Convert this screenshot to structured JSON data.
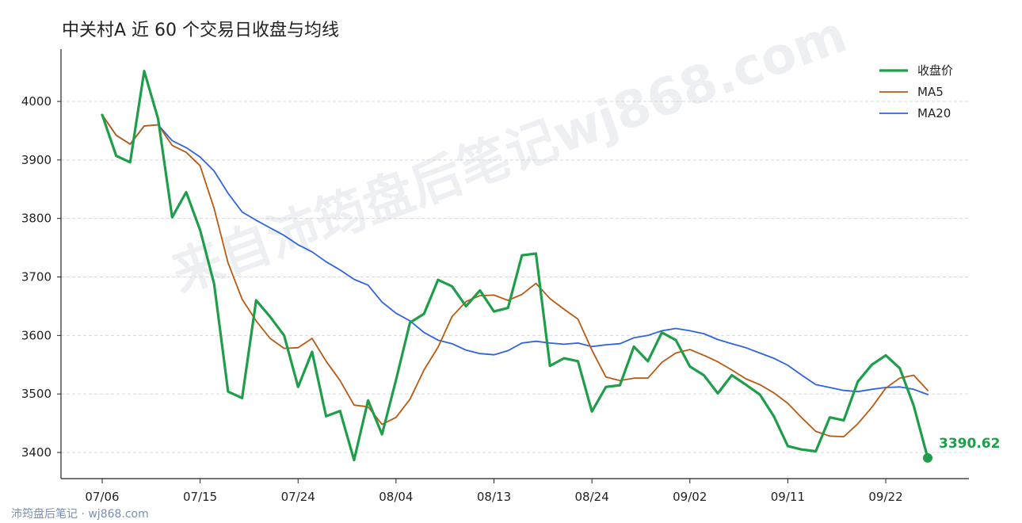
{
  "title": "中关村A 近 60 个交易日收盘与均线",
  "watermark": "来自沛筠盘后笔记wj868.com",
  "footer": "沛筠盘后笔记 · wj868.com",
  "colors": {
    "close": "#1e9e4a",
    "ma5": "#b85a12",
    "ma20": "#2f64e0",
    "grid": "#d8d8d8",
    "axis": "#222222"
  },
  "chart_data": {
    "type": "line",
    "title": "中关村A 近 60 个交易日收盘与均线",
    "xlabel": "",
    "ylabel": "",
    "ylim": [
      3365,
      4085
    ],
    "yticks": [
      3400,
      3500,
      3600,
      3700,
      3800,
      3900,
      4000
    ],
    "xtick_labels": [
      "07/06",
      "07/15",
      "07/24",
      "08/04",
      "08/13",
      "08/24",
      "09/02",
      "09/11",
      "09/22"
    ],
    "xtick_index": [
      0,
      7,
      14,
      21,
      28,
      35,
      42,
      49,
      56
    ],
    "grid": "horizontal dashed",
    "legend_position": "top-right",
    "series": [
      {
        "name": "收盘价",
        "values": [
          3977,
          3907,
          3896,
          4052,
          3970,
          3802,
          3845,
          3780,
          3688,
          3504,
          3493,
          3660,
          3632,
          3600,
          3512,
          3572,
          3462,
          3471,
          3387,
          3489,
          3431,
          3524,
          3622,
          3637,
          3695,
          3684,
          3650,
          3677,
          3641,
          3647,
          3737,
          3740,
          3548,
          3561,
          3556,
          3470,
          3512,
          3515,
          3581,
          3556,
          3605,
          3592,
          3547,
          3532,
          3501,
          3532,
          3516,
          3499,
          3462,
          3411,
          3405,
          3402,
          3460,
          3455,
          3521,
          3550,
          3566,
          3544,
          3480,
          3390.62
        ]
      },
      {
        "name": "MA5",
        "values": [
          3977,
          3942,
          3927,
          3958,
          3960,
          3925,
          3913,
          3890,
          3817,
          3724,
          3662,
          3625,
          3595,
          3578,
          3579,
          3595,
          3556,
          3523,
          3481,
          3478,
          3448,
          3460,
          3491,
          3541,
          3580,
          3632,
          3658,
          3668,
          3669,
          3660,
          3670,
          3689,
          3663,
          3645,
          3628,
          3575,
          3529,
          3523,
          3527,
          3527,
          3554,
          3570,
          3576,
          3566,
          3555,
          3541,
          3526,
          3516,
          3502,
          3484,
          3459,
          3436,
          3428,
          3427,
          3449,
          3477,
          3510,
          3527,
          3532,
          3506
        ]
      },
      {
        "name": "MA20",
        "values": [
          3977,
          3942,
          3927,
          3958,
          3960,
          3933,
          3921,
          3905,
          3881,
          3843,
          3811,
          3797,
          3784,
          3771,
          3755,
          3743,
          3726,
          3712,
          3696,
          3686,
          3657,
          3638,
          3625,
          3605,
          3592,
          3586,
          3575,
          3569,
          3567,
          3574,
          3587,
          3590,
          3587,
          3585,
          3587,
          3581,
          3584,
          3586,
          3596,
          3600,
          3608,
          3612,
          3608,
          3603,
          3593,
          3586,
          3579,
          3570,
          3561,
          3549,
          3532,
          3516,
          3511,
          3506,
          3504,
          3508,
          3511,
          3512,
          3508,
          3499
        ]
      }
    ],
    "last_value_label": "3390.62"
  }
}
